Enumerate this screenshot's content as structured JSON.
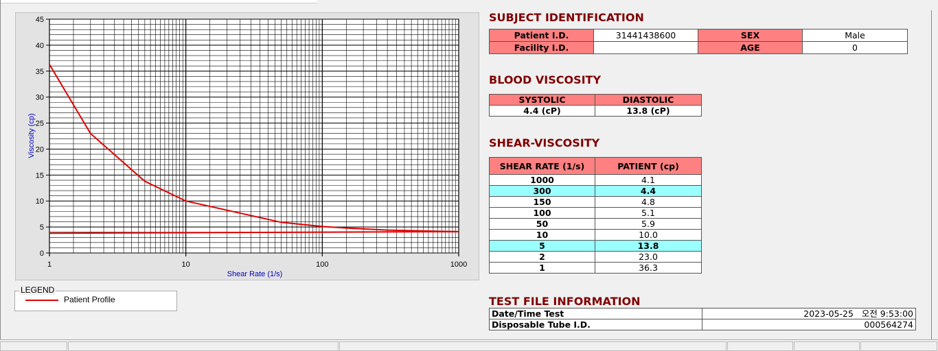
{
  "chart_data": {
    "type": "line",
    "x_label": "Shear Rate (1/s)",
    "y_label": "Viscosity (cp)",
    "xscale": "log",
    "xlim": [
      1,
      1000
    ],
    "xticks": [
      1,
      10,
      100,
      1000
    ],
    "ylim": [
      0,
      45
    ],
    "yticks": [
      0,
      5,
      10,
      15,
      20,
      25,
      30,
      35,
      40,
      45
    ],
    "grid": true,
    "legend_title": "LEGEND",
    "series": [
      {
        "name": "Patient Profile",
        "color": "#e00000",
        "x": [
          1,
          2,
          5,
          10,
          50,
          100,
          150,
          300,
          1000
        ],
        "values": [
          36.3,
          23.0,
          13.8,
          10.0,
          5.9,
          5.1,
          4.8,
          4.4,
          4.1
        ]
      },
      {
        "color": "#e00000",
        "x": [
          1,
          1000
        ],
        "values": [
          3.8,
          4.1
        ]
      }
    ]
  },
  "subject": {
    "title": "SUBJECT IDENTIFICATION",
    "fields": [
      {
        "label": "Patient I.D.",
        "value": "31441438600"
      },
      {
        "label": "SEX",
        "value": "Male"
      },
      {
        "label": "Facility I.D."
      },
      {
        "label": "AGE",
        "value": "0"
      }
    ]
  },
  "blood": {
    "title": "BLOOD VISCOSITY",
    "headers": [
      "SYSTOLIC",
      "DIASTOLIC"
    ],
    "values": [
      "4.4 (cP)",
      "13.8 (cP)"
    ]
  },
  "shear": {
    "title": "SHEAR-VISCOSITY",
    "headers": [
      "SHEAR RATE (1/s)",
      "PATIENT (cp)"
    ],
    "rows": [
      {
        "rate": "1000",
        "value": "4.1"
      },
      {
        "rate": "300",
        "value": "4.4",
        "highlight": true
      },
      {
        "rate": "150",
        "value": "4.8"
      },
      {
        "rate": "100",
        "value": "5.1"
      },
      {
        "rate": "50",
        "value": "5.9"
      },
      {
        "rate": "10",
        "value": "10.0"
      },
      {
        "rate": "5",
        "value": "13.8",
        "highlight": true
      },
      {
        "rate": "2",
        "value": "23.0"
      },
      {
        "rate": "1",
        "value": "36.3"
      }
    ]
  },
  "test_file": {
    "title": "TEST FILE INFORMATION",
    "rows": [
      {
        "label": "Date/Time Test",
        "value": "2023-05-25   오전 9:53:00"
      },
      {
        "label": "Disposable Tube I.D.",
        "value": "000564274"
      }
    ]
  }
}
